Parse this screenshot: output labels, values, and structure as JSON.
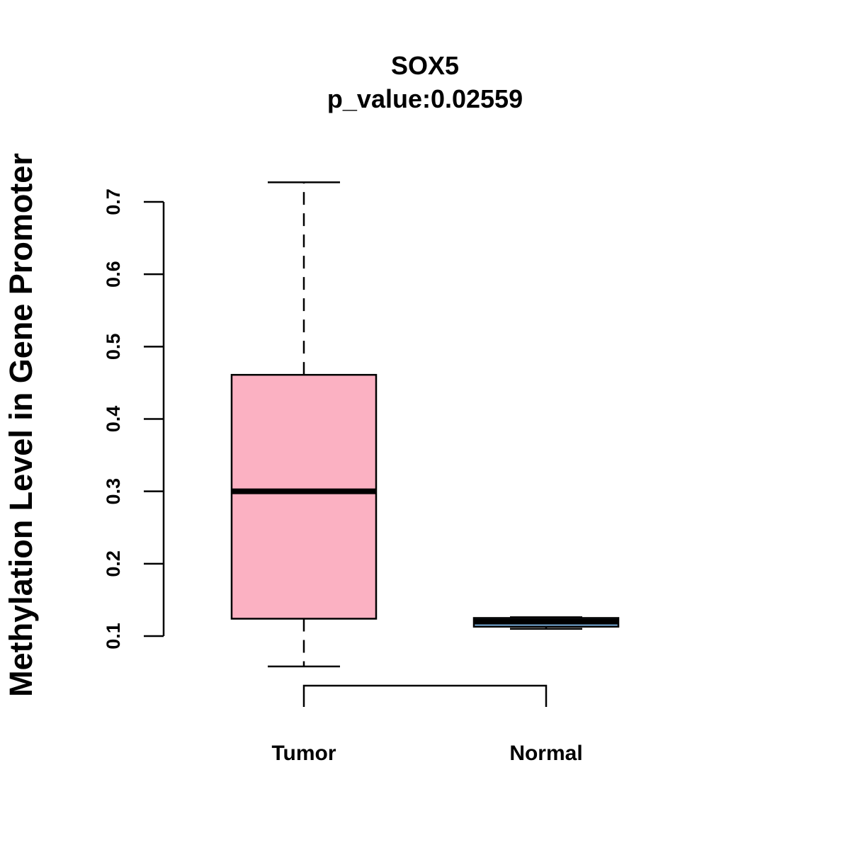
{
  "chart_data": {
    "type": "box",
    "title": "SOX5",
    "subtitle": "p_value:0.02559",
    "xlabel": "",
    "ylabel": "Methylation Level in Gene Promoter",
    "ylim": [
      0.1,
      0.7
    ],
    "yticks": [
      "0.1",
      "0.2",
      "0.3",
      "0.4",
      "0.5",
      "0.6",
      "0.7"
    ],
    "categories": [
      "Tumor",
      "Normal"
    ],
    "grid": false,
    "comparison_bracket": true,
    "series": [
      {
        "category": "Tumor",
        "min": 0.058,
        "q1": 0.124,
        "median": 0.3,
        "q3": 0.461,
        "max": 0.727,
        "color": "#FBB1C2"
      },
      {
        "category": "Normal",
        "min": 0.11,
        "q1": 0.113,
        "median": 0.12,
        "q3": 0.125,
        "max": 0.126,
        "color": "#7FB8E8"
      }
    ]
  }
}
